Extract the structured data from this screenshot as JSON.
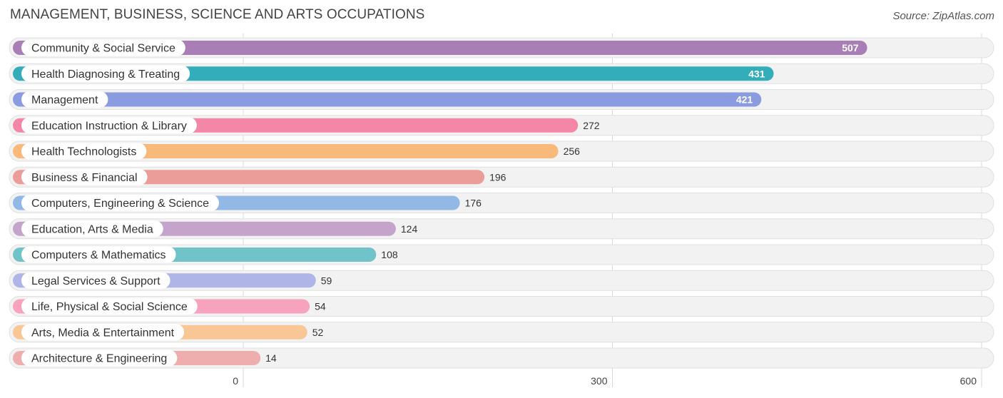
{
  "header": {
    "title": "MANAGEMENT, BUSINESS, SCIENCE AND ARTS OCCUPATIONS",
    "source": "Source: ZipAtlas.com"
  },
  "chart_data": {
    "type": "bar",
    "orientation": "horizontal",
    "title": "MANAGEMENT, BUSINESS, SCIENCE AND ARTS OCCUPATIONS",
    "xlim": [
      0,
      600
    ],
    "xticks": [
      0,
      300,
      600
    ],
    "grid": true,
    "categories": [
      "Community & Social Service",
      "Health Diagnosing & Treating",
      "Management",
      "Education Instruction & Library",
      "Health Technologists",
      "Business & Financial",
      "Computers, Engineering & Science",
      "Education, Arts & Media",
      "Computers & Mathematics",
      "Legal Services & Support",
      "Life, Physical & Social Science",
      "Arts, Media & Entertainment",
      "Architecture & Engineering"
    ],
    "values": [
      507,
      431,
      421,
      272,
      256,
      196,
      176,
      124,
      108,
      59,
      54,
      52,
      14
    ],
    "colors": [
      "#a97db5",
      "#33adb9",
      "#8b9be0",
      "#f487a8",
      "#f9b97a",
      "#eb9e99",
      "#92b9e6",
      "#c4a4cb",
      "#70c4c9",
      "#b0b5e8",
      "#f7a3bd",
      "#f9c696",
      "#efaeae"
    ]
  }
}
